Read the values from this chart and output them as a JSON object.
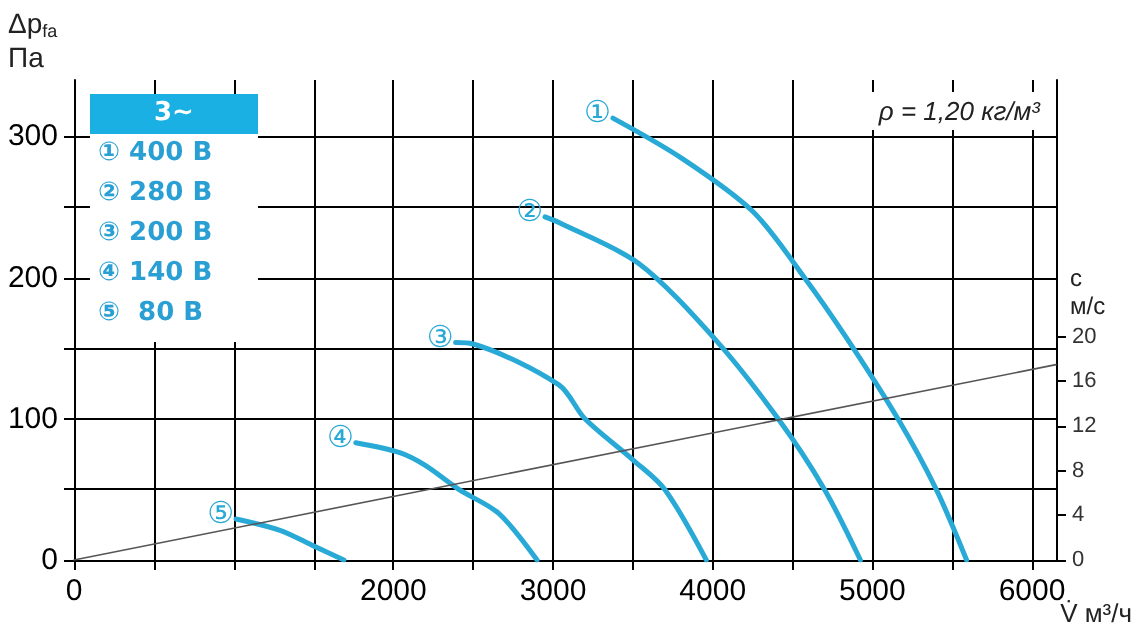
{
  "chart_data": {
    "type": "line",
    "xlabel": "V̇ м³/ч",
    "ylabel": "Δp$_{fa}$\nПа",
    "y2label": "c\nм/с",
    "annotations": [
      "3~",
      "① 400 В",
      "② 280 В",
      "③ 200 В",
      "④ 140 В",
      "⑤  80 В",
      "ρ = 1,20 кг/м³"
    ],
    "series": [
      {
        "name": "①",
        "color": "#29a9d6",
        "x": [
          3375,
          3800,
          4250,
          4575,
          4840,
          5160,
          5400,
          5590
        ],
        "values": [
          313,
          285,
          247,
          200,
          157,
          100,
          50,
          0
        ]
      },
      {
        "name": "②",
        "color": "#29a9d6",
        "x": [
          2950,
          3037,
          3537,
          4010,
          4410,
          4700,
          4925
        ],
        "values": [
          243,
          239,
          210,
          157,
          100,
          50,
          0
        ]
      },
      {
        "name": "③",
        "color": "#29a9d6",
        "x": [
          2390,
          2500,
          3037,
          3200,
          3500,
          3700,
          3960
        ],
        "values": [
          154,
          153,
          124,
          100,
          71,
          50,
          0
        ]
      },
      {
        "name": "④",
        "color": "#29a9d6",
        "x": [
          1765,
          2040,
          2200,
          2410,
          2660,
          2900
        ],
        "values": [
          83,
          76,
          67,
          50,
          33,
          0
        ]
      },
      {
        "name": "⑤",
        "color": "#29a9d6",
        "x": [
          1015,
          1290,
          1500,
          1690
        ],
        "values": [
          29,
          21,
          10,
          0
        ]
      },
      {
        "color": "#555555",
        "axis": "y2",
        "x": [
          0,
          6150
        ],
        "values": [
          0,
          17.5
        ]
      }
    ],
    "xlim": [
      0,
      6150
    ],
    "ylim": [
      0,
      340
    ],
    "y2lim": [
      0,
      43
    ],
    "xticks": [
      0,
      {
        "value": 500,
        "label": null
      },
      {
        "value": 1000,
        "label": null
      },
      {
        "value": 1500,
        "label": null
      },
      2000,
      {
        "value": 2500,
        "label": null
      },
      3000,
      {
        "value": 3500,
        "label": null
      },
      4000,
      {
        "value": 4500,
        "label": null
      },
      5000,
      {
        "value": 5500,
        "label": null
      },
      6000
    ],
    "yticks": [
      0,
      {
        "value": 50,
        "label": null
      },
      100,
      {
        "value": 150,
        "label": null
      },
      200,
      {
        "value": 250,
        "label": null
      },
      300
    ],
    "y2ticks": [
      0,
      4,
      8,
      12,
      16,
      20
    ],
    "grid": true,
    "marker": "none"
  }
}
